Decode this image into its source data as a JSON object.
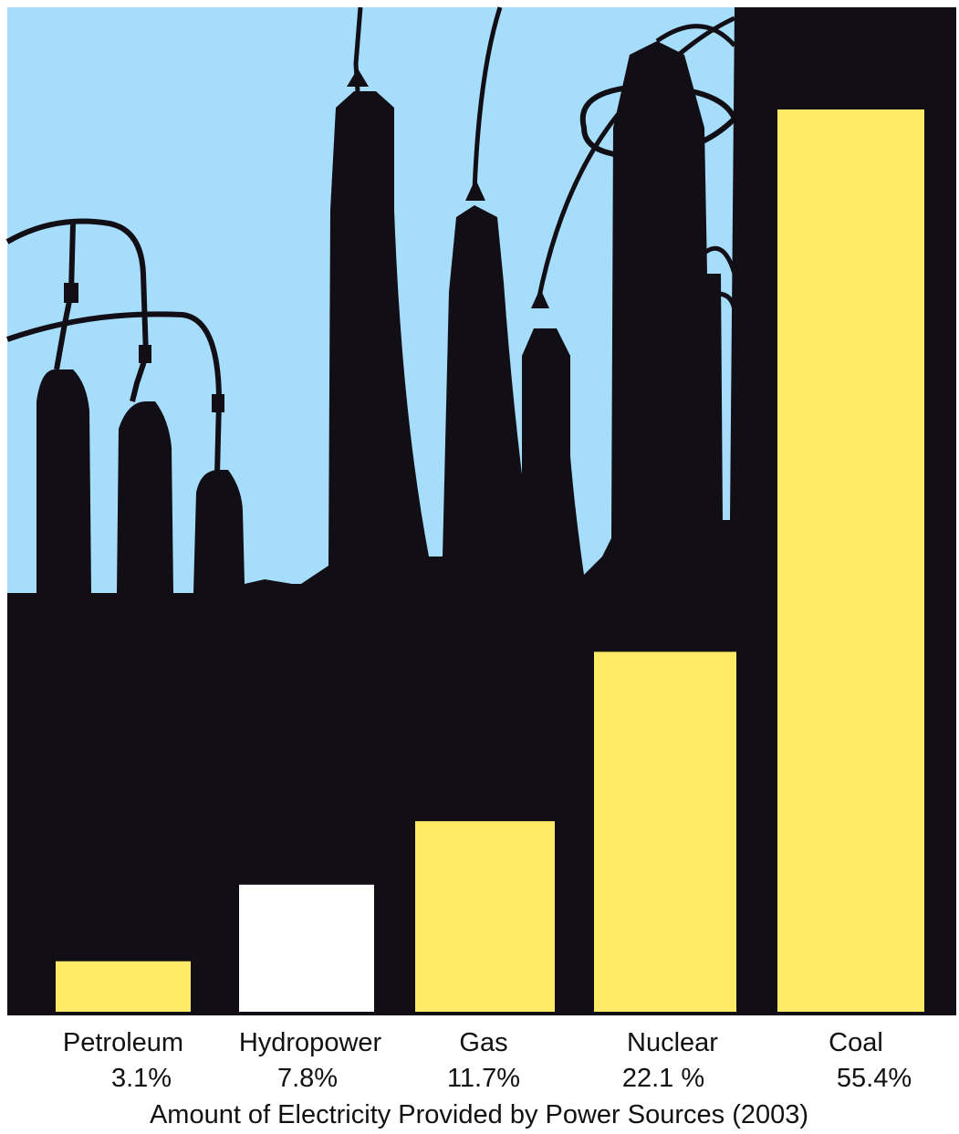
{
  "colors": {
    "sky": "#A6DDFB",
    "silhouette": "#120E16",
    "bar_fill": "#FFEB66",
    "bar_highlight": "#FFFFFF",
    "text": "#111111"
  },
  "chart_data": {
    "type": "bar",
    "title": "Amount of Electricity Provided by Power Sources (2003)",
    "categories": [
      "Petroleum",
      "Hydropower",
      "Gas",
      "Nuclear",
      "Coal"
    ],
    "values": [
      3.1,
      7.8,
      11.7,
      22.1,
      55.4
    ],
    "value_labels": [
      "3.1%",
      "7.8%",
      "11.7%",
      "22.1 %",
      "55.4%"
    ],
    "highlighted_category": "Hydropower",
    "ylim": [
      0,
      55.4
    ],
    "grid": false,
    "legend": "none",
    "background": "silhouette of high-voltage electrical insulators against sky"
  }
}
